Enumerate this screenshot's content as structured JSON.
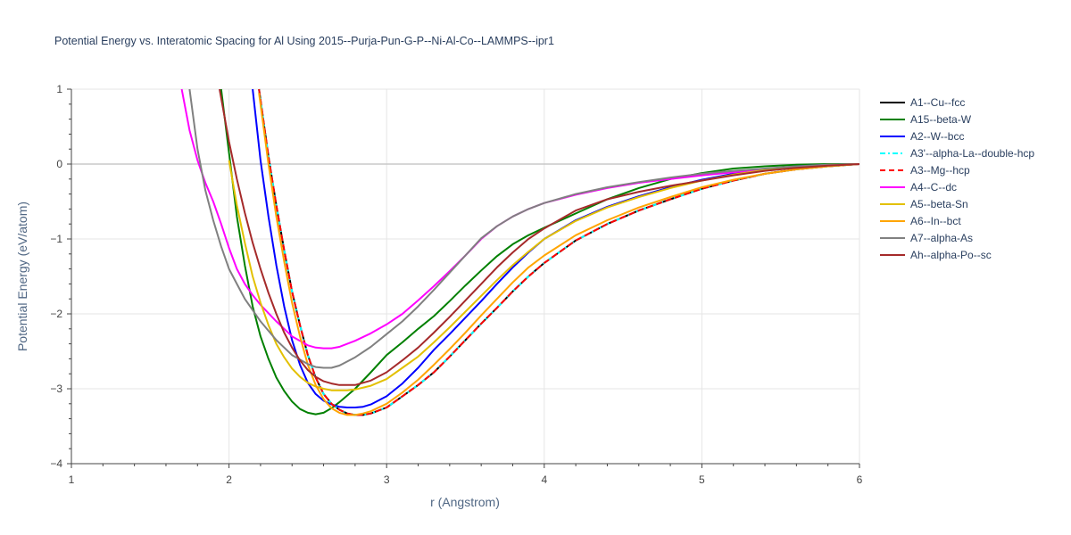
{
  "chart_data": {
    "type": "line",
    "title": "Potential Energy vs. Interatomic Spacing for Al Using 2015--Purja-Pun-G-P--Ni-Al-Co--LAMMPS--ipr1",
    "xlabel": "r (Angstrom)",
    "ylabel": "Potential Energy (eV/atom)",
    "xlim": [
      1,
      6
    ],
    "ylim": [
      -4,
      1
    ],
    "xticks": [
      1,
      2,
      3,
      4,
      5,
      6
    ],
    "yticks": [
      1,
      0,
      -1,
      -2,
      -3,
      -4
    ],
    "ytick_labels": [
      "1",
      "0",
      "−1",
      "−2",
      "−3",
      "−4"
    ],
    "grid": true,
    "legend_position": "right",
    "series": [
      {
        "name": "A1--Cu--fcc",
        "color": "#000000",
        "dash": "solid",
        "x": [
          2.19,
          2.25,
          2.3,
          2.35,
          2.4,
          2.45,
          2.5,
          2.55,
          2.6,
          2.65,
          2.7,
          2.75,
          2.8,
          2.85,
          2.9,
          3.0,
          3.1,
          3.2,
          3.3,
          3.4,
          3.5,
          3.6,
          3.7,
          3.8,
          3.9,
          4.0,
          4.2,
          4.4,
          4.6,
          4.8,
          5.0,
          5.2,
          5.4,
          5.6,
          5.8,
          6.0
        ],
        "y": [
          1.0,
          0.1,
          -0.55,
          -1.15,
          -1.7,
          -2.15,
          -2.55,
          -2.85,
          -3.07,
          -3.2,
          -3.28,
          -3.33,
          -3.35,
          -3.35,
          -3.33,
          -3.25,
          -3.1,
          -2.95,
          -2.78,
          -2.57,
          -2.35,
          -2.13,
          -1.92,
          -1.7,
          -1.5,
          -1.32,
          -1.02,
          -0.8,
          -0.62,
          -0.47,
          -0.33,
          -0.22,
          -0.13,
          -0.07,
          -0.03,
          0.0
        ]
      },
      {
        "name": "A15--beta-W",
        "color": "#008000",
        "dash": "solid",
        "x": [
          1.95,
          2.0,
          2.05,
          2.1,
          2.15,
          2.2,
          2.25,
          2.3,
          2.35,
          2.4,
          2.45,
          2.5,
          2.55,
          2.6,
          2.65,
          2.7,
          2.8,
          2.9,
          3.0,
          3.1,
          3.2,
          3.3,
          3.4,
          3.5,
          3.6,
          3.7,
          3.8,
          3.9,
          4.0,
          4.2,
          4.4,
          4.6,
          4.8,
          5.0,
          5.2,
          5.4,
          5.6,
          5.8,
          6.0
        ],
        "y": [
          1.0,
          0.15,
          -0.7,
          -1.35,
          -1.9,
          -2.3,
          -2.6,
          -2.85,
          -3.03,
          -3.17,
          -3.27,
          -3.32,
          -3.34,
          -3.32,
          -3.26,
          -3.18,
          -3.0,
          -2.78,
          -2.55,
          -2.38,
          -2.2,
          -2.03,
          -1.83,
          -1.62,
          -1.42,
          -1.23,
          -1.07,
          -0.95,
          -0.85,
          -0.66,
          -0.47,
          -0.32,
          -0.2,
          -0.12,
          -0.06,
          -0.03,
          -0.01,
          0.0,
          0.0
        ]
      },
      {
        "name": "A2--W--bcc",
        "color": "#0000ff",
        "dash": "solid",
        "x": [
          2.15,
          2.2,
          2.25,
          2.3,
          2.35,
          2.4,
          2.45,
          2.5,
          2.55,
          2.6,
          2.65,
          2.7,
          2.75,
          2.8,
          2.85,
          2.9,
          3.0,
          3.1,
          3.2,
          3.3,
          3.4,
          3.5,
          3.6,
          3.7,
          3.8,
          3.9,
          4.0,
          4.2,
          4.4,
          4.6,
          4.8,
          5.0,
          5.2,
          5.4,
          5.6,
          5.8,
          6.0
        ],
        "y": [
          1.0,
          0.05,
          -0.7,
          -1.35,
          -1.9,
          -2.35,
          -2.68,
          -2.92,
          -3.07,
          -3.16,
          -3.21,
          -3.24,
          -3.25,
          -3.25,
          -3.24,
          -3.21,
          -3.1,
          -2.93,
          -2.72,
          -2.48,
          -2.27,
          -2.05,
          -1.83,
          -1.6,
          -1.38,
          -1.18,
          -1.0,
          -0.75,
          -0.57,
          -0.43,
          -0.31,
          -0.21,
          -0.13,
          -0.07,
          -0.03,
          -0.01,
          0.0
        ]
      },
      {
        "name": "A3'--alpha-La--double-hcp",
        "color": "#00ffff",
        "dash": "dashdot",
        "x": [
          2.19,
          2.25,
          2.3,
          2.35,
          2.4,
          2.45,
          2.5,
          2.55,
          2.6,
          2.65,
          2.7,
          2.75,
          2.8,
          2.85,
          2.9,
          3.0,
          3.1,
          3.2,
          3.3,
          3.4,
          3.5,
          3.6,
          3.7,
          3.8,
          3.9,
          4.0,
          4.2,
          4.4,
          4.6,
          4.8,
          5.0,
          5.2,
          5.4,
          5.6,
          5.8,
          6.0
        ],
        "y": [
          1.0,
          0.1,
          -0.55,
          -1.15,
          -1.7,
          -2.15,
          -2.55,
          -2.85,
          -3.07,
          -3.2,
          -3.28,
          -3.33,
          -3.35,
          -3.35,
          -3.33,
          -3.25,
          -3.1,
          -2.95,
          -2.78,
          -2.57,
          -2.35,
          -2.13,
          -1.92,
          -1.7,
          -1.5,
          -1.32,
          -1.02,
          -0.8,
          -0.62,
          -0.47,
          -0.33,
          -0.22,
          -0.13,
          -0.07,
          -0.03,
          0.0
        ]
      },
      {
        "name": "A3--Mg--hcp",
        "color": "#ff0000",
        "dash": "dash",
        "x": [
          2.19,
          2.25,
          2.3,
          2.35,
          2.4,
          2.45,
          2.5,
          2.55,
          2.6,
          2.65,
          2.7,
          2.75,
          2.8,
          2.85,
          2.9,
          3.0,
          3.1,
          3.2,
          3.3,
          3.4,
          3.5,
          3.6,
          3.7,
          3.8,
          3.9,
          4.0,
          4.2,
          4.4,
          4.6,
          4.8,
          5.0,
          5.2,
          5.4,
          5.6,
          5.8,
          6.0
        ],
        "y": [
          1.0,
          0.1,
          -0.55,
          -1.15,
          -1.7,
          -2.15,
          -2.55,
          -2.85,
          -3.07,
          -3.2,
          -3.28,
          -3.33,
          -3.35,
          -3.35,
          -3.33,
          -3.25,
          -3.1,
          -2.95,
          -2.78,
          -2.57,
          -2.35,
          -2.13,
          -1.92,
          -1.7,
          -1.5,
          -1.32,
          -1.02,
          -0.8,
          -0.62,
          -0.47,
          -0.33,
          -0.22,
          -0.13,
          -0.07,
          -0.03,
          0.0
        ]
      },
      {
        "name": "A4--C--dc",
        "color": "#ff00ff",
        "dash": "solid",
        "x": [
          1.7,
          1.75,
          1.8,
          1.85,
          1.9,
          1.95,
          2.0,
          2.05,
          2.1,
          2.15,
          2.2,
          2.3,
          2.4,
          2.5,
          2.55,
          2.6,
          2.65,
          2.7,
          2.8,
          2.9,
          3.0,
          3.1,
          3.2,
          3.3,
          3.4,
          3.5,
          3.6,
          3.7,
          3.8,
          3.9,
          4.0,
          4.2,
          4.4,
          4.6,
          4.8,
          5.0,
          5.2,
          5.4,
          5.6,
          5.8,
          6.0
        ],
        "y": [
          1.0,
          0.45,
          0.05,
          -0.25,
          -0.5,
          -0.8,
          -1.12,
          -1.4,
          -1.6,
          -1.75,
          -1.88,
          -2.1,
          -2.3,
          -2.42,
          -2.45,
          -2.46,
          -2.46,
          -2.44,
          -2.36,
          -2.26,
          -2.14,
          -2.0,
          -1.82,
          -1.63,
          -1.43,
          -1.22,
          -1.0,
          -0.83,
          -0.7,
          -0.6,
          -0.52,
          -0.41,
          -0.32,
          -0.25,
          -0.2,
          -0.15,
          -0.11,
          -0.07,
          -0.04,
          -0.02,
          0.0
        ]
      },
      {
        "name": "A5--beta-Sn",
        "color": "#e3c000",
        "dash": "solid",
        "x": [
          2.0,
          2.05,
          2.1,
          2.15,
          2.2,
          2.25,
          2.3,
          2.35,
          2.4,
          2.45,
          2.5,
          2.55,
          2.6,
          2.65,
          2.7,
          2.75,
          2.8,
          2.9,
          3.0,
          3.1,
          3.2,
          3.3,
          3.4,
          3.5,
          3.6,
          3.7,
          3.8,
          3.9,
          4.0,
          4.2,
          4.4,
          4.6,
          4.8,
          5.0,
          5.2,
          5.4,
          5.6,
          5.8,
          6.0
        ],
        "y": [
          0.05,
          -0.55,
          -1.05,
          -1.5,
          -1.85,
          -2.15,
          -2.4,
          -2.58,
          -2.73,
          -2.84,
          -2.92,
          -2.97,
          -3.0,
          -3.02,
          -3.02,
          -3.02,
          -3.01,
          -2.96,
          -2.87,
          -2.72,
          -2.57,
          -2.38,
          -2.18,
          -1.97,
          -1.76,
          -1.55,
          -1.35,
          -1.17,
          -1.0,
          -0.76,
          -0.58,
          -0.44,
          -0.32,
          -0.22,
          -0.14,
          -0.08,
          -0.04,
          -0.01,
          0.0
        ]
      },
      {
        "name": "A6--In--bct",
        "color": "#ffa500",
        "dash": "solid",
        "x": [
          2.19,
          2.25,
          2.3,
          2.35,
          2.4,
          2.45,
          2.5,
          2.55,
          2.6,
          2.65,
          2.7,
          2.75,
          2.8,
          2.85,
          2.9,
          3.0,
          3.1,
          3.2,
          3.3,
          3.4,
          3.5,
          3.6,
          3.7,
          3.8,
          3.9,
          4.0,
          4.2,
          4.4,
          4.6,
          4.8,
          5.0,
          5.2,
          5.4,
          5.6,
          5.8,
          6.0
        ],
        "y": [
          0.95,
          0.0,
          -0.7,
          -1.3,
          -1.85,
          -2.3,
          -2.68,
          -2.95,
          -3.14,
          -3.26,
          -3.32,
          -3.35,
          -3.35,
          -3.33,
          -3.3,
          -3.2,
          -3.05,
          -2.88,
          -2.68,
          -2.47,
          -2.25,
          -2.02,
          -1.8,
          -1.58,
          -1.38,
          -1.22,
          -0.95,
          -0.75,
          -0.58,
          -0.44,
          -0.31,
          -0.21,
          -0.13,
          -0.07,
          -0.03,
          0.0
        ]
      },
      {
        "name": "A7--alpha-As",
        "color": "#808080",
        "dash": "solid",
        "x": [
          1.75,
          1.8,
          1.85,
          1.9,
          1.95,
          2.0,
          2.05,
          2.1,
          2.2,
          2.3,
          2.4,
          2.5,
          2.55,
          2.6,
          2.65,
          2.7,
          2.8,
          2.9,
          3.0,
          3.1,
          3.2,
          3.3,
          3.4,
          3.5,
          3.6,
          3.7,
          3.8,
          3.9,
          4.0,
          4.2,
          4.4,
          4.6,
          4.8,
          5.0,
          5.2,
          5.4,
          5.6,
          5.8,
          6.0
        ],
        "y": [
          1.0,
          0.2,
          -0.35,
          -0.75,
          -1.1,
          -1.4,
          -1.6,
          -1.8,
          -2.1,
          -2.35,
          -2.55,
          -2.67,
          -2.71,
          -2.72,
          -2.72,
          -2.69,
          -2.58,
          -2.44,
          -2.27,
          -2.1,
          -1.9,
          -1.68,
          -1.45,
          -1.22,
          -0.99,
          -0.83,
          -0.7,
          -0.6,
          -0.52,
          -0.4,
          -0.31,
          -0.24,
          -0.18,
          -0.13,
          -0.09,
          -0.06,
          -0.03,
          -0.01,
          0.0
        ]
      },
      {
        "name": "Ah--alpha-Po--sc",
        "color": "#a52a2a",
        "dash": "solid",
        "x": [
          1.94,
          2.0,
          2.05,
          2.1,
          2.15,
          2.2,
          2.25,
          2.3,
          2.35,
          2.4,
          2.45,
          2.5,
          2.55,
          2.6,
          2.65,
          2.7,
          2.75,
          2.8,
          2.9,
          3.0,
          3.1,
          3.2,
          3.3,
          3.4,
          3.5,
          3.6,
          3.7,
          3.8,
          3.9,
          4.0,
          4.2,
          4.4,
          4.6,
          4.8,
          5.0,
          5.2,
          5.4,
          5.6,
          5.8,
          6.0
        ],
        "y": [
          1.0,
          0.3,
          -0.2,
          -0.65,
          -1.05,
          -1.4,
          -1.72,
          -2.0,
          -2.25,
          -2.45,
          -2.62,
          -2.75,
          -2.84,
          -2.9,
          -2.93,
          -2.95,
          -2.95,
          -2.95,
          -2.89,
          -2.78,
          -2.62,
          -2.45,
          -2.25,
          -2.04,
          -1.82,
          -1.6,
          -1.38,
          -1.18,
          -1.0,
          -0.86,
          -0.62,
          -0.47,
          -0.37,
          -0.29,
          -0.22,
          -0.15,
          -0.09,
          -0.05,
          -0.02,
          0.0
        ]
      }
    ]
  }
}
